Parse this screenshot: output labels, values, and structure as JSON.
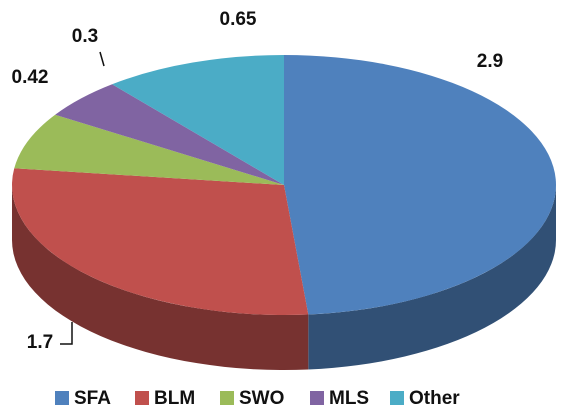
{
  "chart_data": {
    "type": "pie",
    "categories": [
      "SFA",
      "BLM",
      "SWO",
      "MLS",
      "Other"
    ],
    "values": [
      2.9,
      1.7,
      0.42,
      0.3,
      0.65
    ],
    "colors": [
      "#4f81bd",
      "#c0504d",
      "#9bbb59",
      "#8064a2",
      "#4bacc6"
    ],
    "legend": "bottom"
  }
}
